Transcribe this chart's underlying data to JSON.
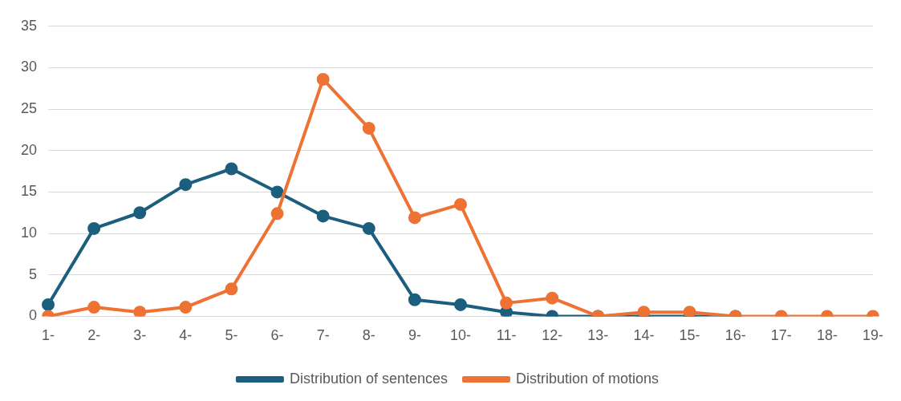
{
  "chart_data": {
    "type": "line",
    "categories": [
      "1-",
      "2-",
      "3-",
      "4-",
      "5-",
      "6-",
      "7-",
      "8-",
      "9-",
      "10-",
      "11-",
      "12-",
      "13-",
      "14-",
      "15-",
      "16-",
      "17-",
      "18-",
      "19-"
    ],
    "series": [
      {
        "name": "Distribution of sentences",
        "color": "#1b5e7e",
        "values": [
          1.4,
          10.6,
          12.5,
          15.9,
          17.8,
          15.0,
          12.1,
          10.6,
          2.0,
          1.4,
          0.5,
          0,
          0,
          0,
          0,
          0,
          null,
          null,
          null
        ]
      },
      {
        "name": "Distribution of motions",
        "color": "#ee7233",
        "values": [
          0,
          1.1,
          0.5,
          1.1,
          3.3,
          12.4,
          28.6,
          22.7,
          11.9,
          13.5,
          1.6,
          2.2,
          0,
          0.5,
          0.5,
          0,
          0,
          0,
          0
        ]
      }
    ],
    "ylim": [
      0,
      35
    ],
    "yticks": [
      0,
      5,
      10,
      15,
      20,
      25,
      30,
      35
    ],
    "grid": "y",
    "legend": "bottom",
    "marker": "circle",
    "line_style": "solid"
  }
}
